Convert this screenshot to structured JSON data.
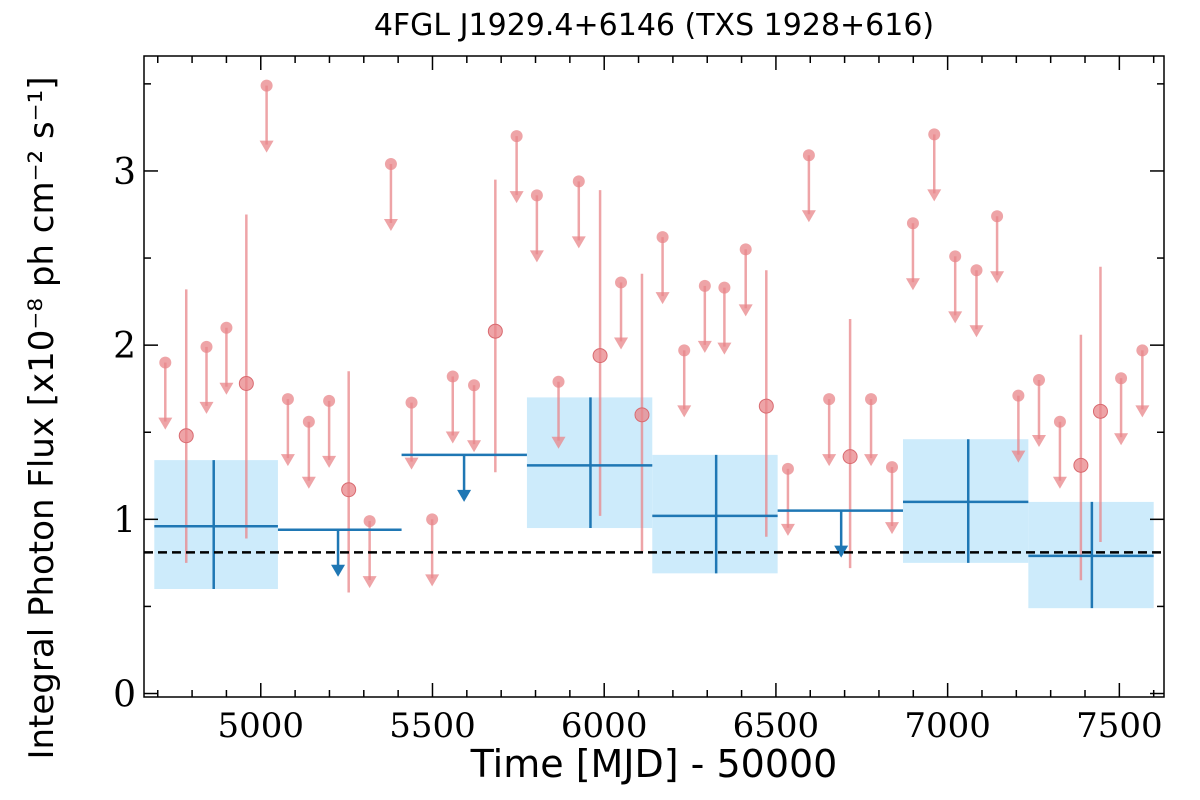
{
  "chart_data": {
    "type": "scatter",
    "title": "4FGL J1929.4+6146 (TXS 1928+616)",
    "xlabel": "Time [MJD] - 50000",
    "ylabel": "Integral Photon Flux [x10$^{-8}$ ph cm$^{-2}$ s$^{-1}$]",
    "ylabel_display": "Integral Photon Flux [x10⁻⁸ ph cm⁻² s⁻¹]",
    "xlim": [
      4660,
      7630
    ],
    "ylim": [
      -0.02,
      3.66
    ],
    "x_ticks": [
      5000,
      5500,
      6000,
      6500,
      7000,
      7500
    ],
    "x_tick_labels": [
      "5000",
      "5500",
      "6000",
      "6500",
      "7000",
      "7500"
    ],
    "y_ticks": [
      0,
      1,
      2,
      3
    ],
    "y_tick_labels": [
      "0",
      "1",
      "2",
      "3"
    ],
    "reference_line": {
      "y": 0.81,
      "style": "dashed",
      "color": "#000000"
    },
    "colors": {
      "long_bins": "#1f77b4",
      "long_bins_band": "#cdebfb",
      "short_bins": "#e8858a"
    },
    "series": [
      {
        "binning": "short",
        "detections": [
          {
            "x": 4783,
            "y": 1.48,
            "yerr_low": 0.73,
            "yerr_high": 0.84
          },
          {
            "x": 4958,
            "y": 1.78,
            "yerr_low": 0.89,
            "yerr_high": 0.97
          },
          {
            "x": 5256,
            "y": 1.17,
            "yerr_low": 0.59,
            "yerr_high": 0.68
          },
          {
            "x": 5683,
            "y": 2.08,
            "yerr_low": 0.81,
            "yerr_high": 0.87
          },
          {
            "x": 5988,
            "y": 1.94,
            "yerr_low": 0.92,
            "yerr_high": 0.95
          },
          {
            "x": 6110,
            "y": 1.6,
            "yerr_low": 0.79,
            "yerr_high": 0.81
          },
          {
            "x": 6472,
            "y": 1.65,
            "yerr_low": 0.75,
            "yerr_high": 0.78
          },
          {
            "x": 6716,
            "y": 1.36,
            "yerr_low": 0.64,
            "yerr_high": 0.79
          },
          {
            "x": 7388,
            "y": 1.31,
            "yerr_low": 0.66,
            "yerr_high": 0.75
          },
          {
            "x": 7445,
            "y": 1.62,
            "yerr_low": 0.75,
            "yerr_high": 0.83
          }
        ],
        "upper_limits": [
          {
            "x": 4722,
            "y": 1.9
          },
          {
            "x": 4842,
            "y": 1.99
          },
          {
            "x": 4900,
            "y": 2.1
          },
          {
            "x": 5017,
            "y": 3.49
          },
          {
            "x": 5079,
            "y": 1.69
          },
          {
            "x": 5140,
            "y": 1.56
          },
          {
            "x": 5199,
            "y": 1.68
          },
          {
            "x": 5317,
            "y": 0.99
          },
          {
            "x": 5379,
            "y": 3.04
          },
          {
            "x": 5439,
            "y": 1.67
          },
          {
            "x": 5499,
            "y": 1.0
          },
          {
            "x": 5559,
            "y": 1.82
          },
          {
            "x": 5621,
            "y": 1.77
          },
          {
            "x": 5745,
            "y": 3.2
          },
          {
            "x": 5804,
            "y": 2.86
          },
          {
            "x": 5867,
            "y": 1.79
          },
          {
            "x": 5926,
            "y": 2.94
          },
          {
            "x": 6049,
            "y": 2.36
          },
          {
            "x": 6170,
            "y": 2.62
          },
          {
            "x": 6233,
            "y": 1.97
          },
          {
            "x": 6293,
            "y": 2.34
          },
          {
            "x": 6350,
            "y": 2.33
          },
          {
            "x": 6412,
            "y": 2.55
          },
          {
            "x": 6535,
            "y": 1.29
          },
          {
            "x": 6596,
            "y": 3.09
          },
          {
            "x": 6655,
            "y": 1.69
          },
          {
            "x": 6777,
            "y": 1.69
          },
          {
            "x": 6838,
            "y": 1.3
          },
          {
            "x": 6899,
            "y": 2.7
          },
          {
            "x": 6961,
            "y": 3.21
          },
          {
            "x": 7022,
            "y": 2.51
          },
          {
            "x": 7084,
            "y": 2.43
          },
          {
            "x": 7144,
            "y": 2.74
          },
          {
            "x": 7206,
            "y": 1.71
          },
          {
            "x": 7266,
            "y": 1.8
          },
          {
            "x": 7327,
            "y": 1.56
          },
          {
            "x": 7505,
            "y": 1.81
          },
          {
            "x": 7567,
            "y": 1.97
          }
        ]
      },
      {
        "binning": "long",
        "detections": [
          {
            "x": 4863,
            "x_low": 4690,
            "x_high": 5050,
            "y": 0.96,
            "y_low": 0.6,
            "y_high": 1.34
          },
          {
            "x": 5960,
            "x_low": 5775,
            "x_high": 6140,
            "y": 1.31,
            "y_low": 0.95,
            "y_high": 1.7
          },
          {
            "x": 6326,
            "x_low": 6140,
            "x_high": 6505,
            "y": 1.02,
            "y_low": 0.69,
            "y_high": 1.37
          },
          {
            "x": 7060,
            "x_low": 6870,
            "x_high": 7235,
            "y": 1.1,
            "y_low": 0.75,
            "y_high": 1.46
          },
          {
            "x": 7420,
            "x_low": 7235,
            "x_high": 7600,
            "y": 0.79,
            "y_low": 0.49,
            "y_high": 1.1
          }
        ],
        "upper_limits": [
          {
            "x": 5225,
            "x_low": 5050,
            "x_high": 5410,
            "y": 0.94
          },
          {
            "x": 5592,
            "x_low": 5410,
            "x_high": 5775,
            "y": 1.37
          },
          {
            "x": 6690,
            "x_low": 6505,
            "x_high": 6870,
            "y": 1.05
          }
        ]
      }
    ]
  }
}
